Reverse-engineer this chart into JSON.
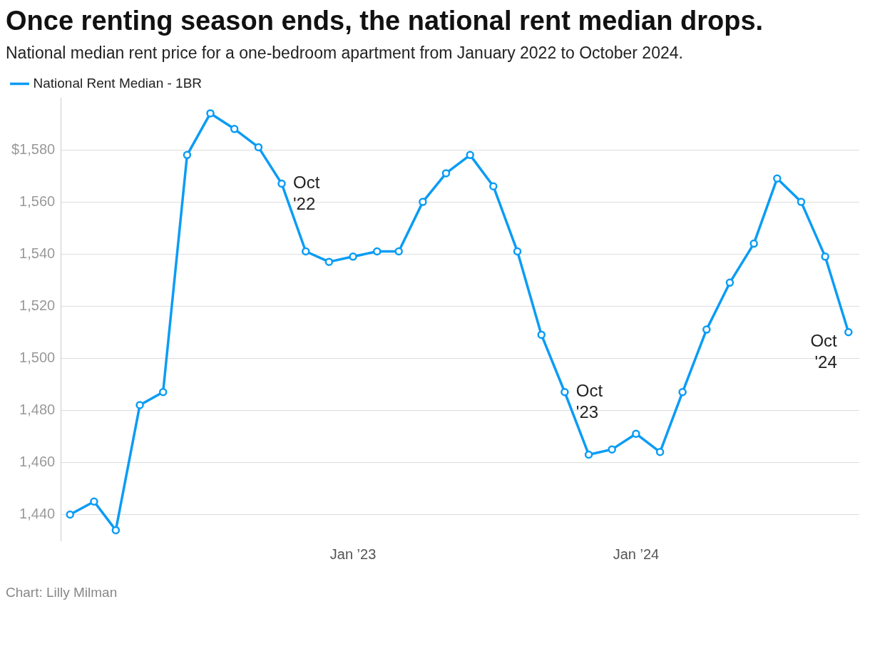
{
  "chart_data": {
    "type": "line",
    "title": "Once renting season ends, the national rent median drops.",
    "subtitle": "National median rent price for a one-bedroom apartment from January 2022 to October 2024.",
    "x": [
      "2022-01",
      "2022-02",
      "2022-03",
      "2022-04",
      "2022-05",
      "2022-06",
      "2022-07",
      "2022-08",
      "2022-09",
      "2022-10",
      "2022-11",
      "2022-12",
      "2023-01",
      "2023-02",
      "2023-03",
      "2023-04",
      "2023-05",
      "2023-06",
      "2023-07",
      "2023-08",
      "2023-09",
      "2023-10",
      "2023-11",
      "2023-12",
      "2024-01",
      "2024-02",
      "2024-03",
      "2024-04",
      "2024-05",
      "2024-06",
      "2024-07",
      "2024-08",
      "2024-09",
      "2024-10"
    ],
    "series": [
      {
        "name": "National Rent Median - 1BR",
        "color": "#0a9cf5",
        "values": [
          1440,
          1445,
          1434,
          1482,
          1487,
          1578,
          1594,
          1588,
          1581,
          1567,
          1541,
          1537,
          1539,
          1541,
          1541,
          1560,
          1571,
          1578,
          1566,
          1541,
          1509,
          1487,
          1463,
          1465,
          1471,
          1464,
          1487,
          1511,
          1529,
          1544,
          1569,
          1560,
          1539,
          1510
        ]
      }
    ],
    "xlim": [
      "2021-12-20",
      "2024-10-15"
    ],
    "xticks": [
      {
        "value": "2023-01",
        "label": "Jan ’23"
      },
      {
        "value": "2024-01",
        "label": "Jan ’24"
      }
    ],
    "ylim": [
      1430,
      1600
    ],
    "yticks": [
      {
        "value": 1440,
        "label": "1,440"
      },
      {
        "value": 1460,
        "label": "1,460"
      },
      {
        "value": 1480,
        "label": "1,480"
      },
      {
        "value": 1500,
        "label": "1,500"
      },
      {
        "value": 1520,
        "label": "1,520"
      },
      {
        "value": 1540,
        "label": "1,540"
      },
      {
        "value": 1560,
        "label": "1,560"
      },
      {
        "value": 1580,
        "label": "$1,580"
      }
    ],
    "grid": "y",
    "legend": "top left",
    "marker": "circle",
    "line_style": "solid",
    "annotations": [
      {
        "text": "Oct '22",
        "x": "2022-10",
        "y": 1567
      },
      {
        "text": "Oct '23",
        "x": "2023-10",
        "y": 1487
      },
      {
        "text": "Oct '24",
        "x": "2024-10",
        "y": 1510
      },
      "Chart: Lilly Milman"
    ]
  }
}
